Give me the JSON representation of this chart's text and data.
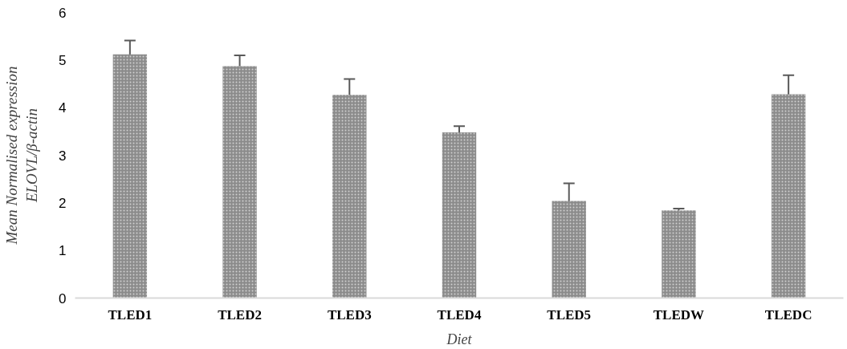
{
  "chart_data": {
    "type": "bar",
    "xlabel": "Diet",
    "ylabel": "Mean Normalised expression\nELOVL/β-actin",
    "categories": [
      "TLED1",
      "TLED2",
      "TLED3",
      "TLED4",
      "TLED5",
      "TLEDW",
      "TLEDC"
    ],
    "values": [
      5.12,
      4.87,
      4.27,
      3.48,
      2.04,
      1.84,
      4.28
    ],
    "errors": [
      0.29,
      0.23,
      0.33,
      0.13,
      0.37,
      0.04,
      0.4
    ],
    "color": "#8c8c8c",
    "ylim": [
      0,
      6
    ],
    "yticks": [
      0,
      1,
      2,
      3,
      4,
      5,
      6
    ]
  }
}
